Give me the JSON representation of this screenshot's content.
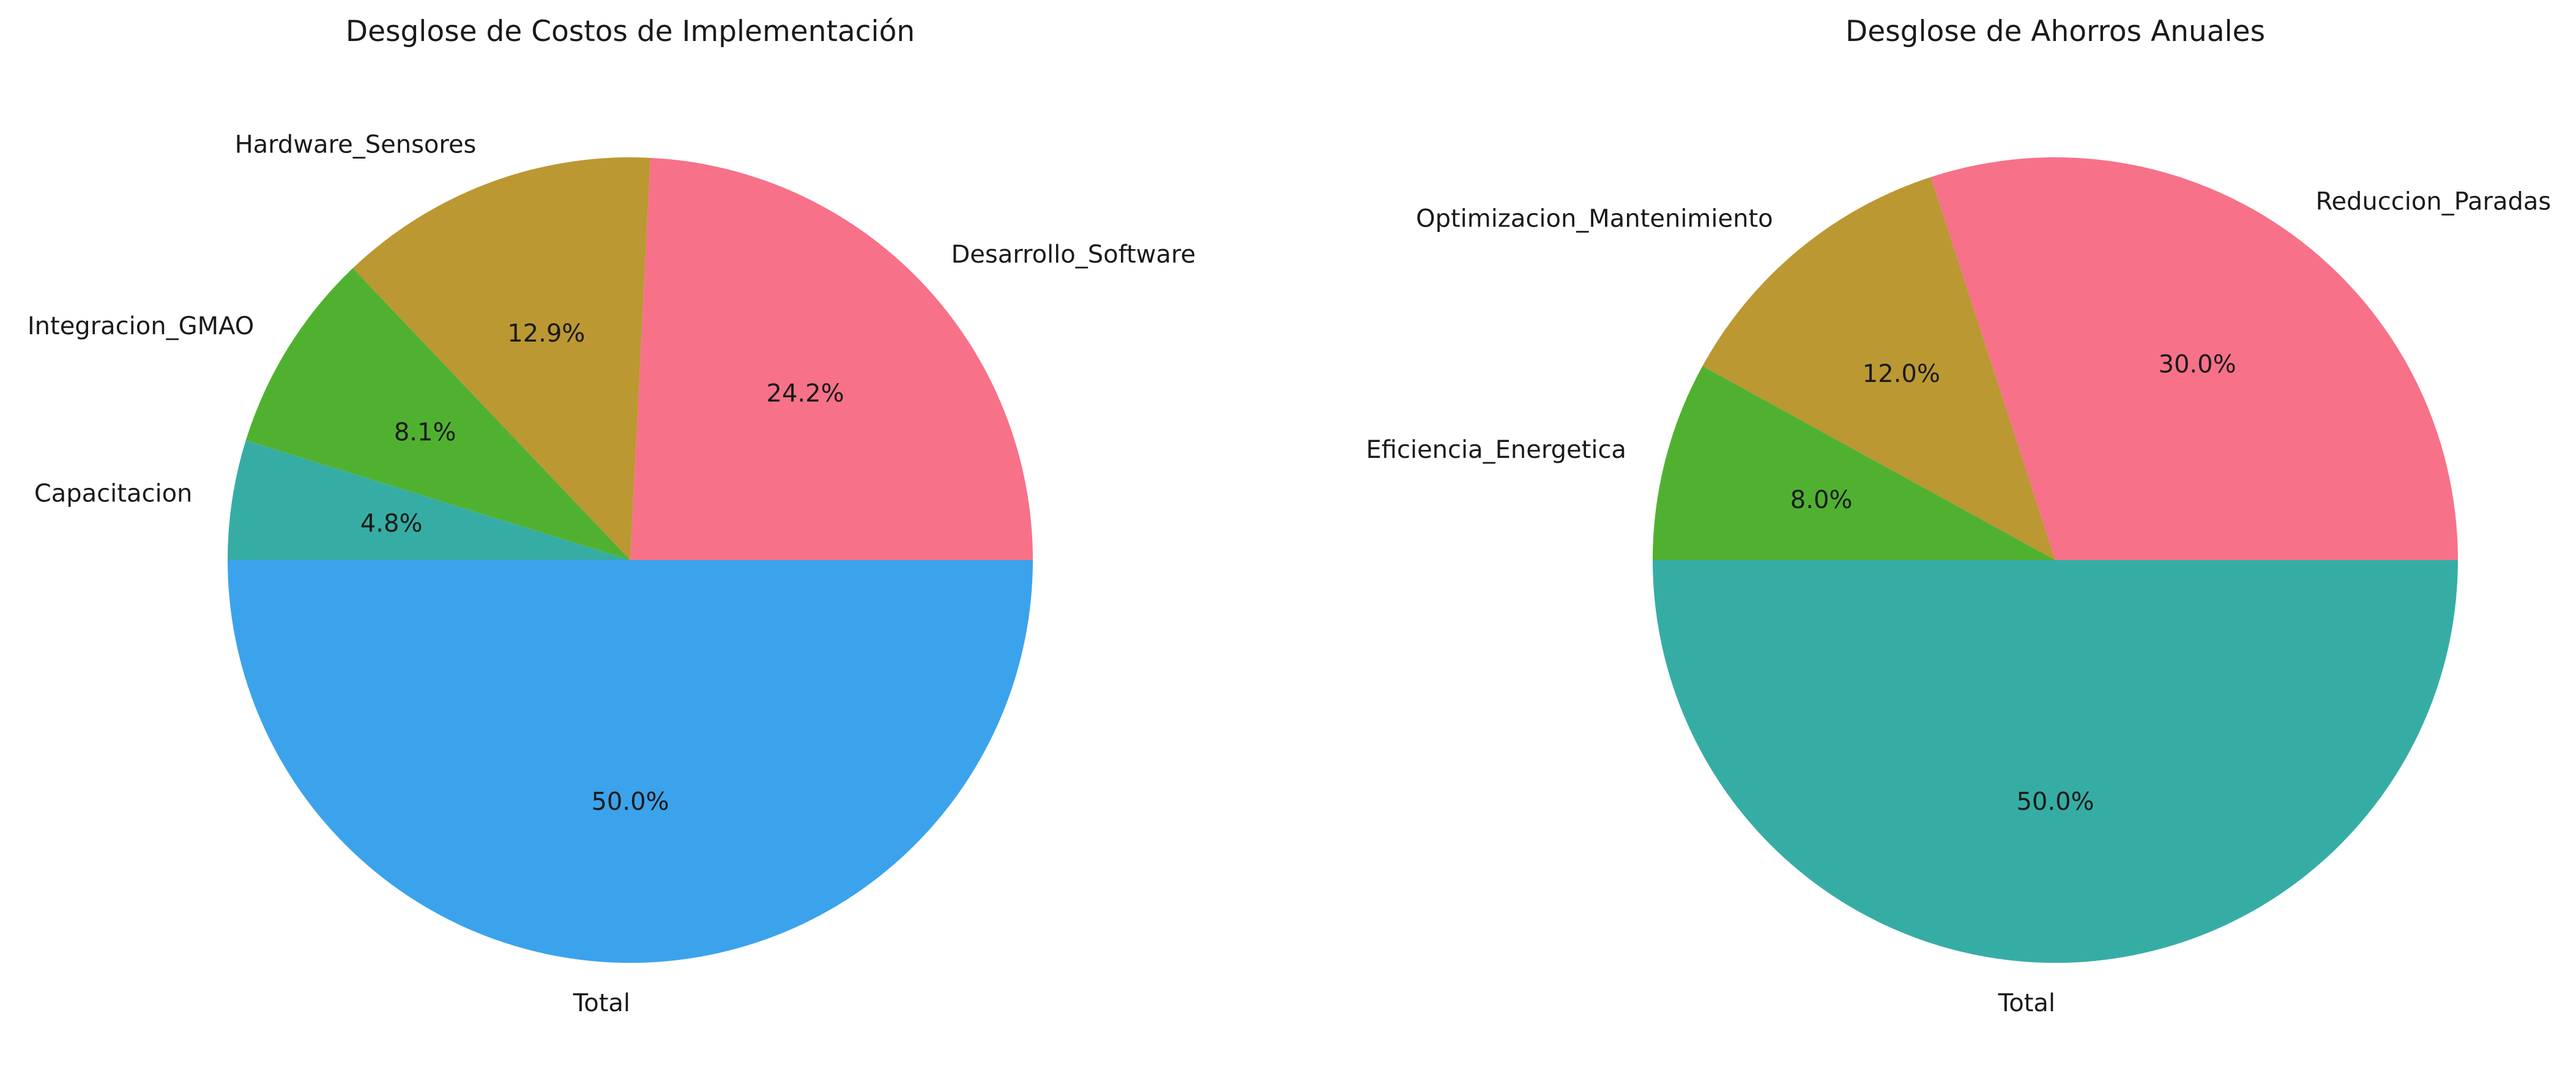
{
  "chart_data": [
    {
      "type": "pie",
      "title": "Desglose de Costos de Implementación",
      "start_angle_deg": 0,
      "direction": "counterclockwise",
      "slices": [
        {
          "label": "Desarrollo_Software",
          "value": 24.2,
          "pct_label": "24.2%",
          "color": "#f77189"
        },
        {
          "label": "Hardware_Sensores",
          "value": 12.9,
          "pct_label": "12.9%",
          "color": "#bb9832"
        },
        {
          "label": "Integracion_GMAO",
          "value": 8.1,
          "pct_label": "8.1%",
          "color": "#50b131"
        },
        {
          "label": "Capacitacion",
          "value": 4.8,
          "pct_label": "4.8%",
          "color": "#36ada4"
        },
        {
          "label": "Total",
          "value": 50.0,
          "pct_label": "50.0%",
          "color": "#3ba3ec"
        }
      ]
    },
    {
      "type": "pie",
      "title": "Desglose de Ahorros Anuales",
      "start_angle_deg": 0,
      "direction": "counterclockwise",
      "slices": [
        {
          "label": "Reduccion_Paradas",
          "value": 30.0,
          "pct_label": "30.0%",
          "color": "#f77189"
        },
        {
          "label": "Optimizacion_Mantenimiento",
          "value": 12.0,
          "pct_label": "12.0%",
          "color": "#bb9832"
        },
        {
          "label": "Eficiencia_Energetica",
          "value": 8.0,
          "pct_label": "8.0%",
          "color": "#50b131"
        },
        {
          "label": "Total",
          "value": 50.0,
          "pct_label": "50.0%",
          "color": "#36ada4"
        }
      ]
    }
  ]
}
